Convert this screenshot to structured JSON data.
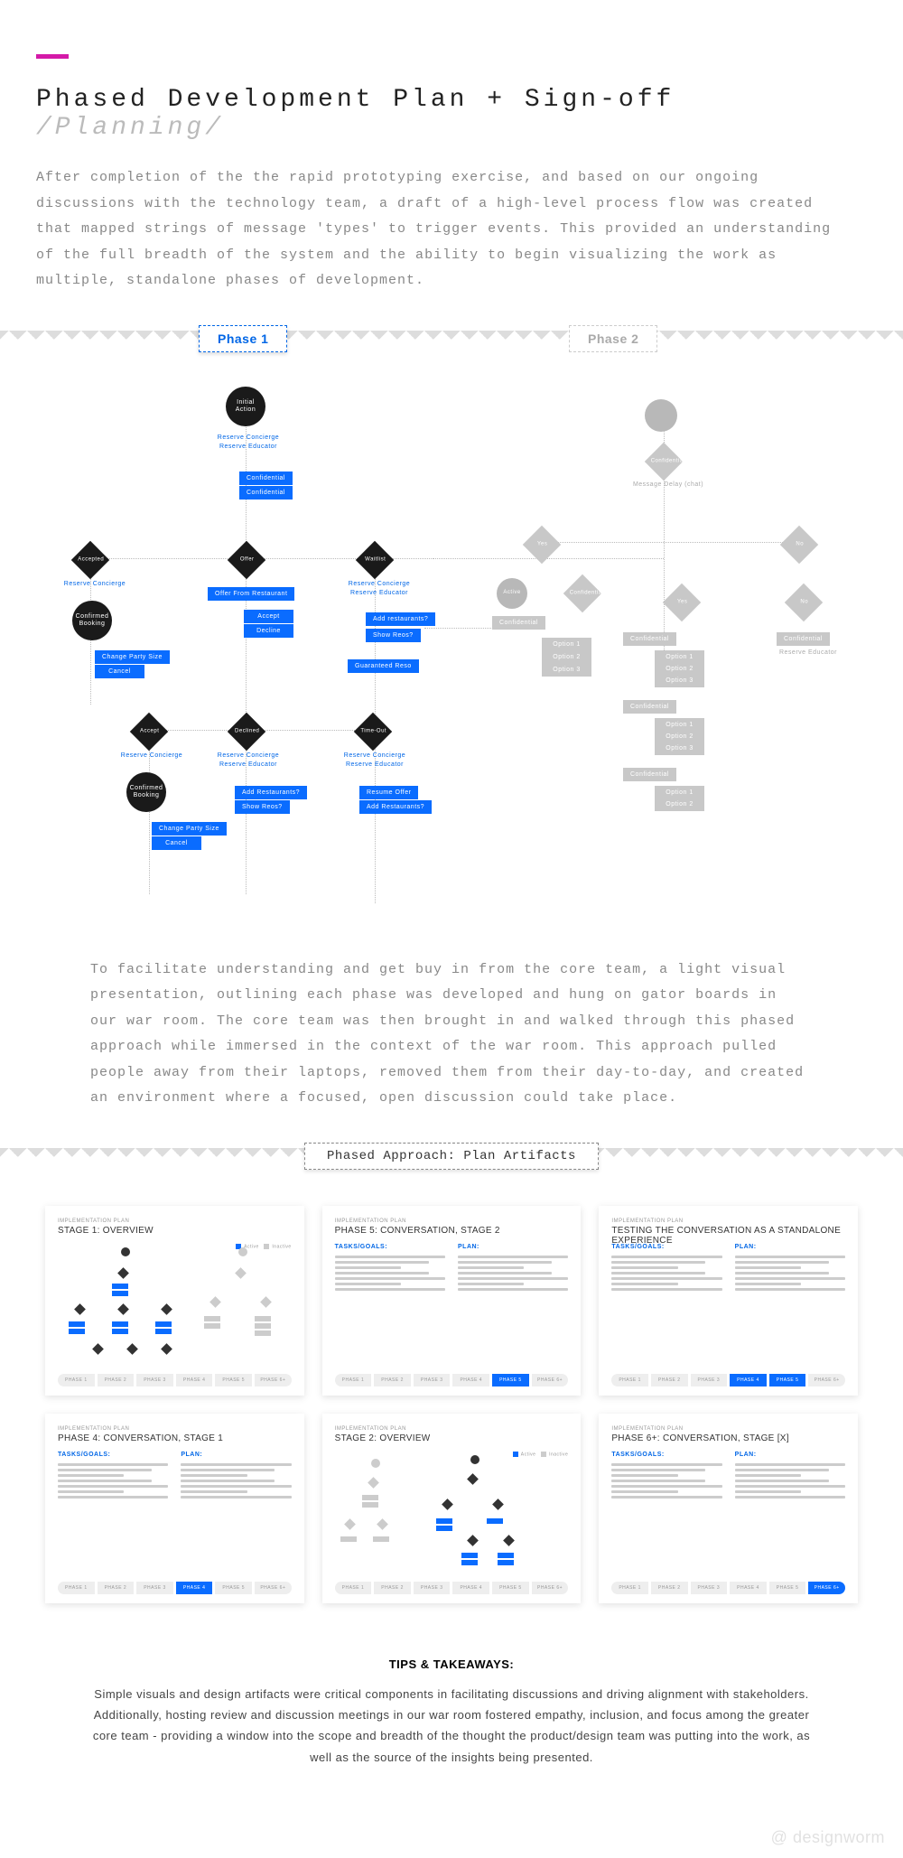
{
  "accent_color": "#d41aa8",
  "primary_blue": "#0a6cff",
  "link_blue": "#0066e6",
  "grey": "#c8c8c8",
  "header": {
    "title": "Phased Development Plan + Sign-off",
    "section": "/Planning/",
    "intro": "After completion of the the rapid prototyping exercise, and based on our ongoing discussions with the technology team, a draft of a high-level process flow was created that mapped strings of message 'types' to trigger events. This provided an understanding of the full breadth of the system and the ability to begin visualizing the work as multiple, standalone phases of development."
  },
  "phases": {
    "p1_label": "Phase 1",
    "p2_label": "Phase 2"
  },
  "flowchart": {
    "phase1": {
      "start": "Initial Action",
      "links_top": "Reserve Concierge\nReserve Educator",
      "confirm1": "Confidential",
      "confirm2": "Confidential",
      "d_accept": "Accepted",
      "d_offer": "Offer",
      "d_waitlist": "Waitlist",
      "accept_link": "Reserve Concierge",
      "accept_start": "Confirmed Booking",
      "accept_b1": "Change Party Size",
      "accept_b2": "Cancel",
      "offer_b1": "Offer From Restaurant",
      "offer_b2": "Accept",
      "offer_b3": "Decline",
      "wait_link": "Reserve Concierge\nReserve Educator",
      "wait_b1": "Add restaurants?",
      "wait_b2": "Show Reos?",
      "wait_b3": "Guaranteed Reso",
      "row2_d1": "Accept",
      "row2_d2": "Declined",
      "row2_d3": "Time-Out",
      "r2c1_link": "Reserve Concierge",
      "r2c1_start": "Confirmed Booking",
      "r2c1_b1": "Change Party Size",
      "r2c1_b2": "Cancel",
      "r2c2_link": "Reserve Concierge\nReserve Educator",
      "r2c2_b1": "Add Restaurants?",
      "r2c2_b2": "Show Reos?",
      "r2c3_link": "Reserve Concierge\nReserve Educator",
      "r2c3_b1": "Resume Offer",
      "r2c3_b2": "Add Restaurants?"
    },
    "phase2": {
      "d_top": "Confidential",
      "sub": "Message Delay (chat)",
      "d_yes": "Yes",
      "d_no": "No",
      "nd_active": "Active",
      "nd_conf": "Confidential",
      "b_conf": "Confidential",
      "opts1": [
        "Option 1",
        "Option 2",
        "Option 3"
      ],
      "d_yes2": "Yes",
      "d_no2": "No",
      "grp1": "Confidential",
      "grp1_opts": [
        "Option 1",
        "Option 2",
        "Option 3"
      ],
      "grp2": "Confidential",
      "grp2_opts": [
        "Option 1",
        "Option 2",
        "Option 3"
      ],
      "grp3": "Confidential",
      "grp3_opts": [
        "Option 1",
        "Option 2"
      ],
      "right_b": "Confidential",
      "right_l": "Reserve Educator"
    }
  },
  "mid_para": "To facilitate understanding and get buy in from the core team, a light visual presentation, outlining each phase was developed and hung on gator boards in our war room. The core team was then brought in and walked through this phased approach while immersed in the context of the war room. This approach pulled people away from their laptops, removed them from their day-to-day, and created an environment where a focused, open discussion could take place.",
  "artifacts": {
    "badge": "Phased Approach: Plan Artifacts",
    "pre": "IMPLEMENTATION PLAN",
    "cards": [
      {
        "title": "STAGE 1: OVERVIEW",
        "type": "overview",
        "active_pills": [],
        "legend": true
      },
      {
        "title": "PHASE 5: CONVERSATION, STAGE 2",
        "type": "text",
        "h_left": "TASKS/GOALS:",
        "h_right": "PLAN:",
        "active_pills": [
          4
        ]
      },
      {
        "title": "TESTING THE CONVERSATION AS A STANDALONE EXPERIENCE",
        "type": "text",
        "h_left": "TASKS/GOALS:",
        "h_right": "PLAN:",
        "active_pills": [
          3,
          4
        ]
      },
      {
        "title": "PHASE 4: CONVERSATION, STAGE 1",
        "type": "text",
        "h_left": "TASKS/GOALS:",
        "h_right": "PLAN:",
        "active_pills": [
          3
        ]
      },
      {
        "title": "STAGE 2: OVERVIEW",
        "type": "overview2",
        "active_pills": [],
        "legend": true
      },
      {
        "title": "PHASE 6+: CONVERSATION, STAGE [X]",
        "type": "text",
        "h_left": "TASKS/GOALS:",
        "h_right": "PLAN:",
        "active_pills": [
          5
        ]
      }
    ],
    "pill_labels": [
      "PHASE 1",
      "PHASE 2",
      "PHASE 3",
      "PHASE 4",
      "PHASE 5",
      "PHASE 6+"
    ]
  },
  "tips": {
    "heading": "TIPS & TAKEAWAYS:",
    "body": "Simple visuals and design artifacts were critical components in facilitating discussions and driving alignment with stakeholders. Additionally, hosting review and discussion meetings in our war room fostered empathy, inclusion, and focus among the greater core team - providing a window into the scope and breadth of the thought the product/design team was putting into the work, as well as the source of the insights being presented."
  },
  "watermark": "@ designworm"
}
